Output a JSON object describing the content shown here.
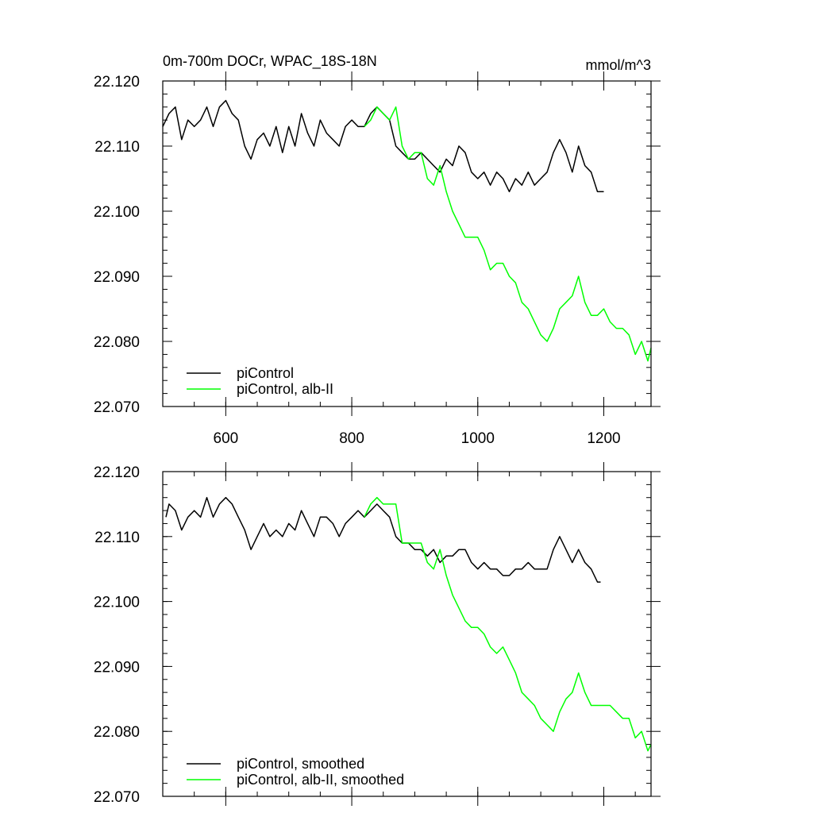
{
  "title_left": "0m-700m DOCr, WPAC_18S-18N",
  "title_right": "mmol/m^3",
  "colors": {
    "piControl": "#000000",
    "alb": "#00ff00"
  },
  "chart_data": [
    {
      "type": "line",
      "panel": "top",
      "xlim": [
        500,
        1275
      ],
      "ylim": [
        22.07,
        22.12
      ],
      "x_ticks": [
        "600",
        "800",
        "1000",
        "1200"
      ],
      "y_ticks": [
        "22.120",
        "22.110",
        "22.100",
        "22.090",
        "22.080",
        "22.070"
      ],
      "legend_position": "bottom-left",
      "series": [
        {
          "name": "piControl",
          "color": "#000000",
          "x": [
            500,
            510,
            520,
            530,
            540,
            550,
            560,
            570,
            580,
            590,
            600,
            610,
            620,
            630,
            640,
            650,
            660,
            670,
            680,
            690,
            700,
            710,
            720,
            730,
            740,
            750,
            760,
            770,
            780,
            790,
            800,
            810,
            820,
            830,
            840,
            850,
            860,
            870,
            880,
            890,
            900,
            910,
            920,
            930,
            940,
            950,
            960,
            970,
            980,
            990,
            1000,
            1010,
            1020,
            1030,
            1040,
            1050,
            1060,
            1070,
            1080,
            1090,
            1100,
            1110,
            1120,
            1130,
            1140,
            1150,
            1160,
            1170,
            1180,
            1190,
            1200
          ],
          "y": [
            22.113,
            22.115,
            22.116,
            22.111,
            22.114,
            22.113,
            22.114,
            22.116,
            22.113,
            22.116,
            22.117,
            22.115,
            22.114,
            22.11,
            22.108,
            22.111,
            22.112,
            22.11,
            22.113,
            22.109,
            22.113,
            22.11,
            22.115,
            22.112,
            22.11,
            22.114,
            22.112,
            22.111,
            22.11,
            22.113,
            22.114,
            22.113,
            22.113,
            22.115,
            22.116,
            22.115,
            22.114,
            22.11,
            22.109,
            22.108,
            22.108,
            22.109,
            22.108,
            22.107,
            22.106,
            22.108,
            22.107,
            22.11,
            22.109,
            22.106,
            22.105,
            22.106,
            22.104,
            22.106,
            22.105,
            22.103,
            22.105,
            22.104,
            22.106,
            22.104,
            22.105,
            22.106,
            22.109,
            22.111,
            22.109,
            22.106,
            22.11,
            22.107,
            22.106,
            22.103,
            22.103
          ]
        },
        {
          "name": "piControl, alb-II",
          "color": "#00ff00",
          "x": [
            820,
            830,
            840,
            850,
            860,
            870,
            880,
            890,
            900,
            910,
            920,
            930,
            940,
            950,
            960,
            970,
            980,
            990,
            1000,
            1010,
            1020,
            1030,
            1040,
            1050,
            1060,
            1070,
            1080,
            1090,
            1100,
            1110,
            1120,
            1130,
            1140,
            1150,
            1160,
            1170,
            1180,
            1190,
            1200,
            1210,
            1220,
            1230,
            1240,
            1250,
            1260,
            1270,
            1275
          ],
          "y": [
            22.113,
            22.114,
            22.116,
            22.115,
            22.114,
            22.116,
            22.11,
            22.108,
            22.109,
            22.109,
            22.105,
            22.104,
            22.107,
            22.103,
            22.1,
            22.098,
            22.096,
            22.096,
            22.096,
            22.094,
            22.091,
            22.092,
            22.092,
            22.09,
            22.089,
            22.086,
            22.085,
            22.083,
            22.081,
            22.08,
            22.082,
            22.085,
            22.086,
            22.087,
            22.09,
            22.086,
            22.084,
            22.084,
            22.085,
            22.083,
            22.082,
            22.082,
            22.081,
            22.078,
            22.08,
            22.077,
            22.079
          ]
        }
      ]
    },
    {
      "type": "line",
      "panel": "bottom",
      "xlim": [
        500,
        1275
      ],
      "ylim": [
        22.07,
        22.12
      ],
      "x_ticks": [],
      "y_ticks": [
        "22.120",
        "22.110",
        "22.100",
        "22.090",
        "22.080",
        "22.070"
      ],
      "legend_position": "bottom-left",
      "series": [
        {
          "name": "piControl, smoothed",
          "color": "#000000",
          "x": [
            505,
            510,
            520,
            530,
            540,
            550,
            560,
            570,
            580,
            590,
            600,
            610,
            620,
            630,
            640,
            650,
            660,
            670,
            680,
            690,
            700,
            710,
            720,
            730,
            740,
            750,
            760,
            770,
            780,
            790,
            800,
            810,
            820,
            830,
            840,
            850,
            860,
            870,
            880,
            890,
            900,
            910,
            920,
            930,
            940,
            950,
            960,
            970,
            980,
            990,
            1000,
            1010,
            1020,
            1030,
            1040,
            1050,
            1060,
            1070,
            1080,
            1090,
            1100,
            1110,
            1120,
            1130,
            1140,
            1150,
            1160,
            1170,
            1180,
            1190,
            1195
          ],
          "y": [
            22.113,
            22.115,
            22.114,
            22.111,
            22.113,
            22.114,
            22.113,
            22.116,
            22.113,
            22.115,
            22.116,
            22.115,
            22.113,
            22.111,
            22.108,
            22.11,
            22.112,
            22.11,
            22.111,
            22.11,
            22.112,
            22.111,
            22.114,
            22.112,
            22.11,
            22.113,
            22.113,
            22.112,
            22.11,
            22.112,
            22.113,
            22.114,
            22.113,
            22.114,
            22.115,
            22.114,
            22.113,
            22.11,
            22.109,
            22.109,
            22.108,
            22.108,
            22.107,
            22.108,
            22.106,
            22.107,
            22.107,
            22.108,
            22.108,
            22.106,
            22.105,
            22.106,
            22.105,
            22.105,
            22.104,
            22.104,
            22.105,
            22.105,
            22.106,
            22.105,
            22.105,
            22.105,
            22.108,
            22.11,
            22.108,
            22.106,
            22.108,
            22.106,
            22.105,
            22.103,
            22.103
          ]
        },
        {
          "name": "piControl, alb-II, smoothed",
          "color": "#00ff00",
          "x": [
            820,
            830,
            840,
            850,
            860,
            870,
            880,
            890,
            900,
            910,
            920,
            930,
            940,
            950,
            960,
            970,
            980,
            990,
            1000,
            1010,
            1020,
            1030,
            1040,
            1050,
            1060,
            1070,
            1080,
            1090,
            1100,
            1110,
            1120,
            1130,
            1140,
            1150,
            1160,
            1170,
            1180,
            1190,
            1200,
            1210,
            1220,
            1230,
            1240,
            1250,
            1260,
            1270,
            1275
          ],
          "y": [
            22.113,
            22.115,
            22.116,
            22.115,
            22.115,
            22.115,
            22.109,
            22.109,
            22.109,
            22.109,
            22.106,
            22.105,
            22.108,
            22.104,
            22.101,
            22.099,
            22.097,
            22.096,
            22.096,
            22.095,
            22.093,
            22.092,
            22.093,
            22.091,
            22.089,
            22.086,
            22.085,
            22.084,
            22.082,
            22.081,
            22.08,
            22.083,
            22.085,
            22.086,
            22.089,
            22.086,
            22.084,
            22.084,
            22.084,
            22.084,
            22.083,
            22.082,
            22.082,
            22.079,
            22.08,
            22.077,
            22.078
          ]
        }
      ]
    }
  ]
}
